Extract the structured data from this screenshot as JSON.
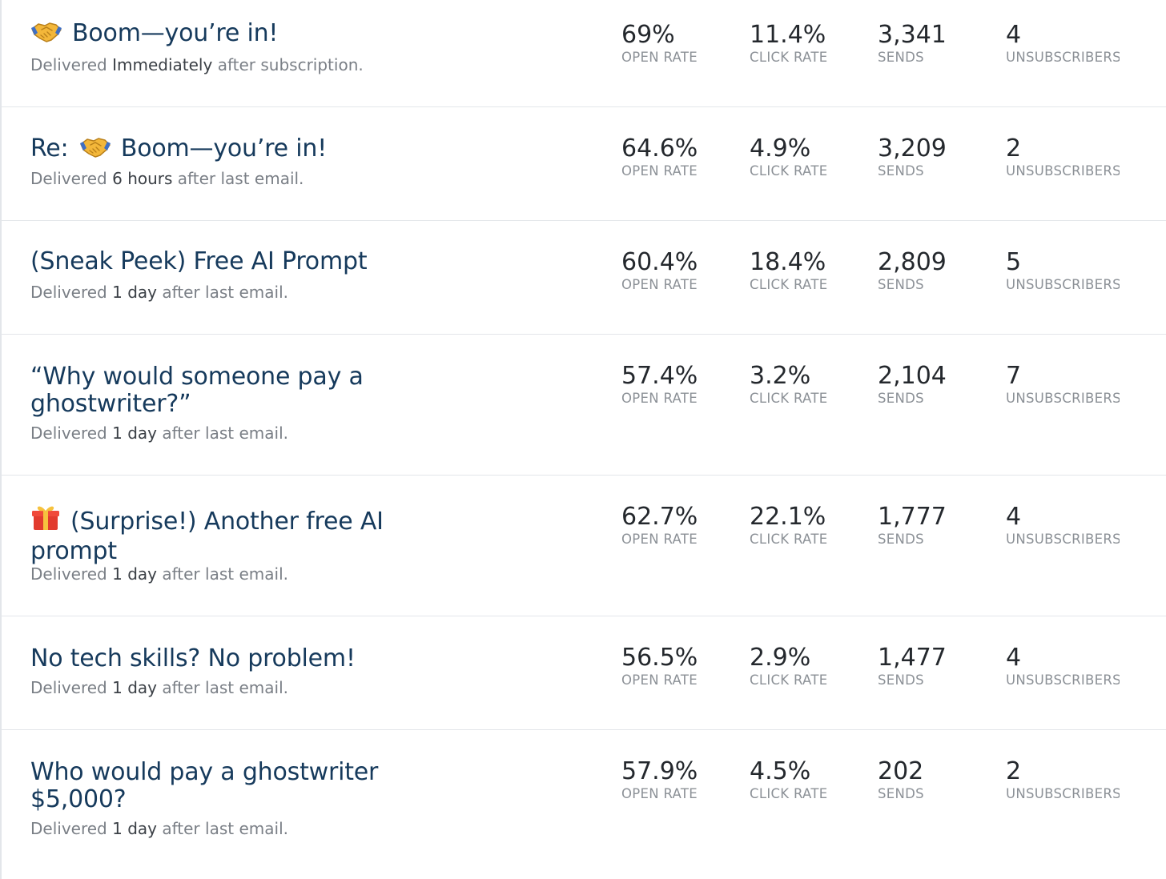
{
  "stat_labels": {
    "open": "OPEN RATE",
    "click": "CLICK RATE",
    "sends": "SENDS",
    "unsub": "UNSUBSCRIBERS"
  },
  "delivery_words": {
    "prefix": "Delivered",
    "after": "after"
  },
  "emails": [
    {
      "title_prefix": "",
      "title": "Boom—you’re in!",
      "icon": "handshake-icon",
      "delivery_when": "Immediately",
      "delivery_ref": "subscription.",
      "open_rate": "69%",
      "click_rate": "11.4%",
      "sends": "3,341",
      "unsubscribers": "4"
    },
    {
      "title_prefix": "Re:",
      "title": "Boom—you’re in!",
      "icon": "handshake-icon",
      "delivery_when": "6 hours",
      "delivery_ref": "last email.",
      "open_rate": "64.6%",
      "click_rate": "4.9%",
      "sends": "3,209",
      "unsubscribers": "2"
    },
    {
      "title_prefix": "",
      "title": "(Sneak Peek) Free AI Prompt",
      "icon": "",
      "delivery_when": "1 day",
      "delivery_ref": "last email.",
      "open_rate": "60.4%",
      "click_rate": "18.4%",
      "sends": "2,809",
      "unsubscribers": "5"
    },
    {
      "title_prefix": "",
      "title": "“Why would someone pay a ghostwriter?”",
      "icon": "",
      "delivery_when": "1 day",
      "delivery_ref": "last email.",
      "open_rate": "57.4%",
      "click_rate": "3.2%",
      "sends": "2,104",
      "unsubscribers": "7"
    },
    {
      "title_prefix": "",
      "title": "(Surprise!) Another free AI prompt",
      "icon": "gift-icon",
      "delivery_when": "1 day",
      "delivery_ref": "last email.",
      "open_rate": "62.7%",
      "click_rate": "22.1%",
      "sends": "1,777",
      "unsubscribers": "4"
    },
    {
      "title_prefix": "",
      "title": "No tech skills? No problem!",
      "icon": "",
      "delivery_when": "1 day",
      "delivery_ref": "last email.",
      "open_rate": "56.5%",
      "click_rate": "2.9%",
      "sends": "1,477",
      "unsubscribers": "4"
    },
    {
      "title_prefix": "",
      "title": "Who would pay a ghostwriter $5,000?",
      "icon": "",
      "delivery_when": "1 day",
      "delivery_ref": "last email.",
      "open_rate": "57.9%",
      "click_rate": "4.5%",
      "sends": "202",
      "unsubscribers": "2"
    }
  ]
}
